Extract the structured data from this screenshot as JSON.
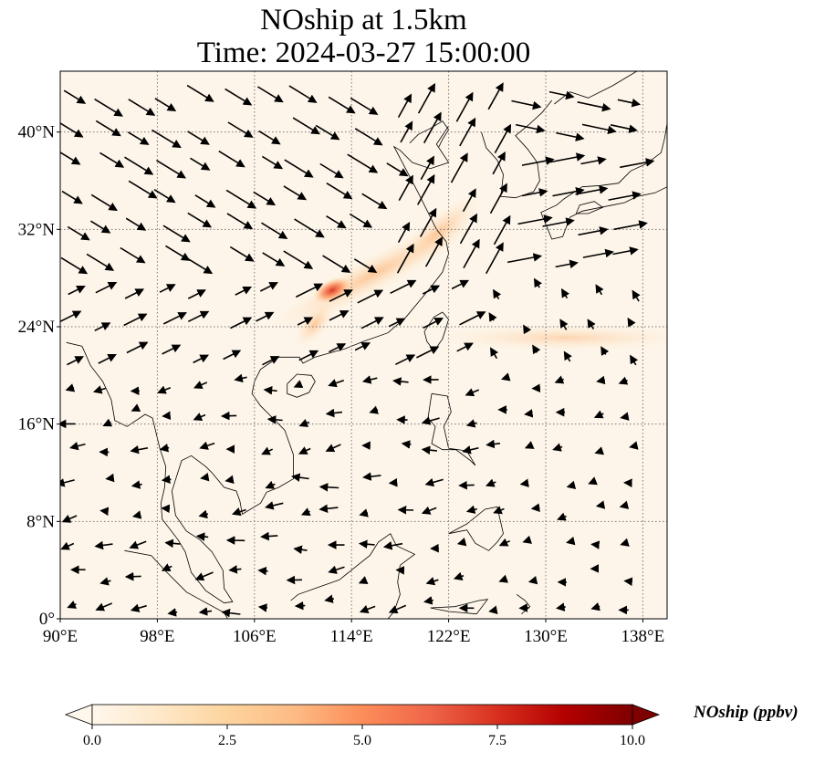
{
  "title": {
    "line1": "NOship at 1.5km",
    "line2": "Time: 2024-03-27 15:00:00"
  },
  "map": {
    "projection": "PlateCarree",
    "lon_range": [
      90,
      140
    ],
    "lat_range": [
      0,
      45
    ],
    "gridlines": "dotted",
    "background_color": "#fdf5e9",
    "lon_ticks": [
      90,
      98,
      106,
      114,
      122,
      130,
      138
    ],
    "lat_ticks": [
      0,
      8,
      16,
      24,
      32,
      40
    ],
    "lon_tick_labels": [
      "90°E",
      "98°E",
      "106°E",
      "114°E",
      "122°E",
      "130°E",
      "138°E"
    ],
    "lat_tick_labels": [
      "0°",
      "8°N",
      "16°N",
      "24°N",
      "32°N",
      "40°N"
    ],
    "vector_field": "wind arrows, black",
    "hotspot": {
      "lon": 112.5,
      "lat": 27,
      "level": "high"
    },
    "plume": "NE-SW band from ~109°E,24°N to ~125°E,34°N, plus ship-track band east of 122°E near 23-25°N"
  },
  "colorbar": {
    "label": "NOship (ppbv)",
    "cmap": "OrRd",
    "extend": "both",
    "vmin": 0.0,
    "vmax": 10.0,
    "ticks": [
      "0.0",
      "2.5",
      "5.0",
      "7.5",
      "10.0"
    ],
    "tick_values": [
      0,
      2.5,
      5,
      7.5,
      10
    ],
    "colors": [
      "#fff7ec",
      "#fee8c8",
      "#fdd49e",
      "#fdbb84",
      "#fc8d59",
      "#ef6548",
      "#d7301f",
      "#b30000",
      "#7f0000"
    ]
  },
  "chart_data": {
    "type": "heatmap",
    "title": "NOship at 1.5km\nTime: 2024-03-27 15:00:00",
    "xlabel": "",
    "ylabel": "",
    "xlim": [
      90,
      140
    ],
    "ylim": [
      0,
      45
    ],
    "colorbar_label": "NOship (ppbv)",
    "colorbar_range": [
      0,
      10
    ],
    "colorbar_ticks": [
      0,
      2.5,
      5,
      7.5,
      10
    ]
  }
}
